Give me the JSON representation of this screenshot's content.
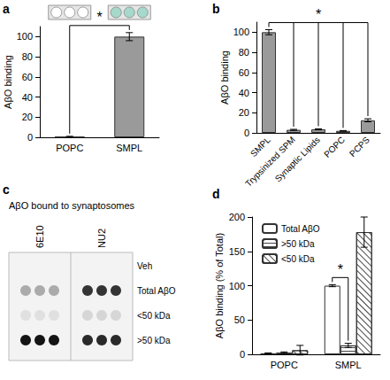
{
  "chart_data": [
    {
      "panel": "a",
      "type": "bar",
      "categories": [
        "POPC",
        "SMPL"
      ],
      "values": [
        0.5,
        100
      ],
      "errors": [
        0.5,
        4
      ],
      "color": "#9a9a9a",
      "y_label": "AβO binding",
      "ylim": [
        0,
        110
      ],
      "yticks": [
        0,
        20,
        40,
        60,
        80,
        100
      ],
      "annotations": [
        {
          "text": "*",
          "from": "POPC",
          "to": [
            "SMPL"
          ]
        }
      ]
    },
    {
      "panel": "b",
      "type": "bar",
      "categories": [
        "SMPL",
        "Trypsinized SPM",
        "Synaptic Lipids",
        "POPC",
        "PCPS"
      ],
      "values": [
        100,
        3,
        3.5,
        2,
        12.5
      ],
      "errors": [
        2.5,
        0.5,
        0.5,
        0.3,
        1.5
      ],
      "color": "#9a9a9a",
      "y_label": "AβO binding",
      "ylim": [
        0,
        110
      ],
      "yticks": [
        0,
        20,
        40,
        60,
        80,
        100
      ],
      "annotations": [
        {
          "text": "*",
          "from": "SMPL",
          "to": [
            "Trypsinized SPM",
            "Synaptic Lipids",
            "POPC",
            "PCPS"
          ]
        }
      ]
    },
    {
      "panel": "d",
      "type": "bar",
      "categories": [
        "POPC",
        "SMPL"
      ],
      "series": [
        {
          "name": "Total AβO",
          "color": "#ffffff",
          "values": [
            1.5,
            100
          ],
          "errors": [
            0.5,
            1.5
          ]
        },
        {
          "name": ">50 kDa",
          "color": "#ffffff",
          "values": [
            2.5,
            13
          ],
          "errors": [
            1,
            3
          ]
        },
        {
          "name": "<50 kDa",
          "color": "#ffffff",
          "values": [
            6,
            178
          ],
          "errors": [
            7,
            22
          ]
        }
      ],
      "y_label": "AβO binding (% of Total)",
      "ylim": [
        0,
        200
      ],
      "yticks": [
        0,
        50,
        100,
        150,
        200
      ],
      "legend": "upper left",
      "annotations": [
        {
          "text": "*",
          "category": "SMPL",
          "from": "Total AβO",
          "to": [
            ">50 kDa"
          ]
        }
      ]
    }
  ],
  "blot": {
    "panel": "c",
    "title": "AβO bound to synaptosomes",
    "lanes": [
      "6E10",
      "NU2"
    ],
    "rows": [
      "Veh",
      "Total AβO",
      "<50 kDa",
      ">50 kDa"
    ],
    "signal": [
      [
        0,
        0.3,
        0.05,
        1
      ],
      [
        0,
        0.85,
        0.1,
        0.9
      ]
    ]
  }
}
